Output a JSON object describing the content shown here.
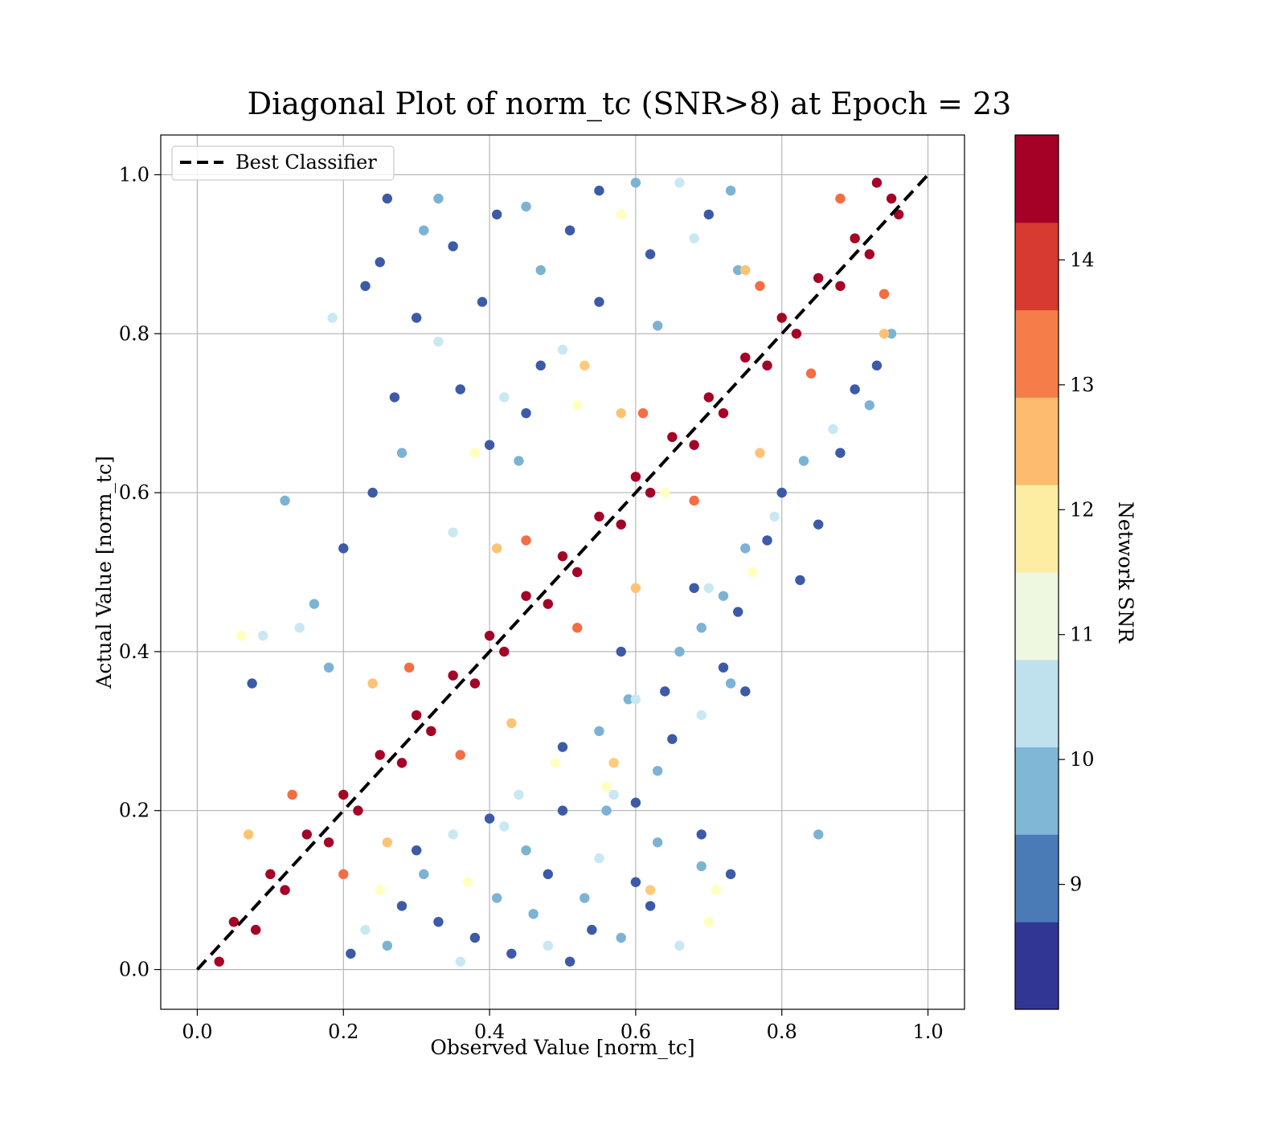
{
  "chart_data": {
    "type": "scatter",
    "title": "Diagonal Plot of norm_tc (SNR>8) at Epoch = 23",
    "xlabel": "Observed Value [norm_tc]",
    "ylabel": "Actual Value [norm_tc]",
    "xlim": [
      -0.05,
      1.05
    ],
    "ylim": [
      -0.05,
      1.05
    ],
    "xticks": [
      "0.0",
      "0.2",
      "0.4",
      "0.6",
      "0.8",
      "1.0"
    ],
    "yticks": [
      "0.0",
      "0.2",
      "0.4",
      "0.6",
      "0.8",
      "1.0"
    ],
    "grid": true,
    "legend": {
      "placement": "top-left",
      "entries": [
        {
          "label": "Best Classifier",
          "style": "dashed",
          "color": "#000000"
        }
      ]
    },
    "reference_line": {
      "x": [
        0,
        1
      ],
      "y": [
        0,
        1
      ]
    },
    "colorbar": {
      "label": "Network SNR",
      "range": [
        8,
        15
      ],
      "ticks": [
        "9",
        "10",
        "11",
        "12",
        "13",
        "14"
      ],
      "colors": [
        "#313695",
        "#4575b4",
        "#74add1",
        "#abd9e9",
        "#e0f3f8",
        "#ffffbf",
        "#fee090",
        "#fdae61",
        "#f46d43",
        "#d73027",
        "#a50026"
      ],
      "band_colors": [
        "#313695",
        "#4a7bb7",
        "#80b6d6",
        "#bfe1ed",
        "#eef7e0",
        "#fdeda3",
        "#fdbc6d",
        "#f57d4a",
        "#d73a2e",
        "#a50026"
      ]
    },
    "points": [
      [
        0.05,
        0.06,
        15.0
      ],
      [
        0.08,
        0.05,
        15.0
      ],
      [
        0.1,
        0.12,
        15.0
      ],
      [
        0.12,
        0.1,
        15.0
      ],
      [
        0.15,
        0.17,
        15.0
      ],
      [
        0.18,
        0.16,
        15.0
      ],
      [
        0.2,
        0.22,
        15.0
      ],
      [
        0.22,
        0.2,
        15.0
      ],
      [
        0.25,
        0.27,
        15.0
      ],
      [
        0.28,
        0.26,
        15.0
      ],
      [
        0.3,
        0.32,
        15.0
      ],
      [
        0.32,
        0.3,
        15.0
      ],
      [
        0.35,
        0.37,
        15.0
      ],
      [
        0.38,
        0.36,
        15.0
      ],
      [
        0.4,
        0.42,
        15.0
      ],
      [
        0.42,
        0.4,
        15.0
      ],
      [
        0.45,
        0.47,
        15.0
      ],
      [
        0.48,
        0.46,
        15.0
      ],
      [
        0.5,
        0.52,
        15.0
      ],
      [
        0.52,
        0.5,
        15.0
      ],
      [
        0.55,
        0.57,
        15.0
      ],
      [
        0.58,
        0.56,
        15.0
      ],
      [
        0.6,
        0.62,
        15.0
      ],
      [
        0.62,
        0.6,
        15.0
      ],
      [
        0.65,
        0.67,
        15.0
      ],
      [
        0.68,
        0.66,
        15.0
      ],
      [
        0.7,
        0.72,
        15.0
      ],
      [
        0.72,
        0.7,
        15.0
      ],
      [
        0.75,
        0.77,
        15.0
      ],
      [
        0.78,
        0.76,
        15.0
      ],
      [
        0.8,
        0.82,
        15.0
      ],
      [
        0.82,
        0.8,
        15.0
      ],
      [
        0.85,
        0.87,
        15.0
      ],
      [
        0.88,
        0.86,
        15.0
      ],
      [
        0.9,
        0.92,
        15.0
      ],
      [
        0.92,
        0.9,
        15.0
      ],
      [
        0.95,
        0.97,
        15.0
      ],
      [
        0.93,
        0.99,
        15.0
      ],
      [
        0.96,
        0.95,
        15.0
      ],
      [
        0.03,
        0.01,
        15.0
      ],
      [
        0.13,
        0.22,
        13.6
      ],
      [
        0.2,
        0.12,
        13.6
      ],
      [
        0.29,
        0.38,
        13.6
      ],
      [
        0.36,
        0.27,
        13.6
      ],
      [
        0.45,
        0.54,
        13.6
      ],
      [
        0.52,
        0.43,
        13.6
      ],
      [
        0.61,
        0.7,
        13.6
      ],
      [
        0.68,
        0.59,
        13.6
      ],
      [
        0.77,
        0.86,
        13.6
      ],
      [
        0.84,
        0.75,
        13.6
      ],
      [
        0.88,
        0.97,
        13.6
      ],
      [
        0.94,
        0.85,
        13.6
      ],
      [
        0.07,
        0.17,
        12.6
      ],
      [
        0.26,
        0.16,
        12.6
      ],
      [
        0.24,
        0.36,
        12.6
      ],
      [
        0.43,
        0.31,
        12.6
      ],
      [
        0.41,
        0.53,
        12.6
      ],
      [
        0.6,
        0.48,
        12.6
      ],
      [
        0.58,
        0.7,
        12.6
      ],
      [
        0.77,
        0.65,
        12.6
      ],
      [
        0.75,
        0.88,
        12.6
      ],
      [
        0.94,
        0.8,
        12.6
      ],
      [
        0.185,
        0.82,
        10.5
      ],
      [
        0.12,
        0.59,
        9.5
      ],
      [
        0.075,
        0.36,
        8.4
      ],
      [
        0.23,
        0.86,
        8.4
      ],
      [
        0.26,
        0.97,
        8.4
      ],
      [
        0.25,
        0.89,
        8.4
      ],
      [
        0.31,
        0.93,
        9.5
      ],
      [
        0.35,
        0.91,
        8.4
      ],
      [
        0.33,
        0.97,
        9.5
      ],
      [
        0.3,
        0.82,
        8.4
      ],
      [
        0.36,
        0.73,
        8.4
      ],
      [
        0.39,
        0.84,
        8.4
      ],
      [
        0.41,
        0.95,
        8.4
      ],
      [
        0.45,
        0.96,
        9.5
      ],
      [
        0.42,
        0.72,
        10.5
      ],
      [
        0.47,
        0.88,
        9.5
      ],
      [
        0.24,
        0.6,
        8.4
      ],
      [
        0.2,
        0.53,
        8.4
      ],
      [
        0.16,
        0.46,
        9.5
      ],
      [
        0.14,
        0.43,
        10.5
      ],
      [
        0.28,
        0.65,
        9.5
      ],
      [
        0.27,
        0.72,
        8.4
      ],
      [
        0.33,
        0.79,
        10.5
      ],
      [
        0.55,
        0.98,
        8.4
      ],
      [
        0.6,
        0.99,
        9.5
      ],
      [
        0.66,
        0.99,
        10.5
      ],
      [
        0.7,
        0.95,
        8.4
      ],
      [
        0.73,
        0.98,
        9.5
      ],
      [
        0.51,
        0.93,
        8.4
      ],
      [
        0.58,
        0.95,
        11.5
      ],
      [
        0.62,
        0.9,
        8.4
      ],
      [
        0.68,
        0.92,
        10.5
      ],
      [
        0.74,
        0.88,
        9.5
      ],
      [
        0.55,
        0.84,
        8.4
      ],
      [
        0.5,
        0.78,
        10.5
      ],
      [
        0.63,
        0.81,
        9.5
      ],
      [
        0.38,
        0.65,
        11.5
      ],
      [
        0.45,
        0.7,
        8.4
      ],
      [
        0.53,
        0.76,
        12.5
      ],
      [
        0.06,
        0.42,
        11.5
      ],
      [
        0.09,
        0.42,
        10.5
      ],
      [
        0.18,
        0.38,
        9.5
      ],
      [
        0.35,
        0.55,
        10.5
      ],
      [
        0.4,
        0.66,
        8.4
      ],
      [
        0.44,
        0.64,
        9.5
      ],
      [
        0.47,
        0.76,
        8.4
      ],
      [
        0.52,
        0.71,
        11.5
      ],
      [
        0.85,
        0.17,
        9.5
      ],
      [
        0.825,
        0.49,
        8.4
      ],
      [
        0.85,
        0.56,
        8.4
      ],
      [
        0.78,
        0.54,
        8.4
      ],
      [
        0.74,
        0.45,
        8.4
      ],
      [
        0.69,
        0.43,
        9.5
      ],
      [
        0.72,
        0.38,
        8.4
      ],
      [
        0.73,
        0.36,
        9.5
      ],
      [
        0.75,
        0.35,
        8.4
      ],
      [
        0.69,
        0.32,
        10.5
      ],
      [
        0.64,
        0.35,
        8.4
      ],
      [
        0.65,
        0.29,
        8.4
      ],
      [
        0.63,
        0.25,
        9.5
      ],
      [
        0.6,
        0.21,
        8.4
      ],
      [
        0.56,
        0.2,
        9.5
      ],
      [
        0.57,
        0.22,
        10.5
      ],
      [
        0.63,
        0.16,
        9.5
      ],
      [
        0.69,
        0.17,
        8.4
      ],
      [
        0.71,
        0.1,
        11.5
      ],
      [
        0.7,
        0.06,
        11.5
      ],
      [
        0.66,
        0.03,
        10.5
      ],
      [
        0.73,
        0.12,
        8.4
      ],
      [
        0.69,
        0.13,
        9.5
      ],
      [
        0.62,
        0.08,
        8.4
      ],
      [
        0.58,
        0.04,
        9.5
      ],
      [
        0.54,
        0.05,
        8.4
      ],
      [
        0.51,
        0.01,
        8.4
      ],
      [
        0.48,
        0.03,
        10.5
      ],
      [
        0.46,
        0.07,
        9.5
      ],
      [
        0.43,
        0.02,
        8.4
      ],
      [
        0.41,
        0.09,
        9.5
      ],
      [
        0.38,
        0.04,
        8.4
      ],
      [
        0.36,
        0.01,
        10.5
      ],
      [
        0.33,
        0.06,
        8.4
      ],
      [
        0.31,
        0.12,
        9.5
      ],
      [
        0.28,
        0.08,
        8.4
      ],
      [
        0.26,
        0.03,
        9.5
      ],
      [
        0.23,
        0.05,
        10.5
      ],
      [
        0.21,
        0.02,
        8.4
      ],
      [
        0.25,
        0.1,
        11.5
      ],
      [
        0.3,
        0.15,
        8.4
      ],
      [
        0.35,
        0.17,
        10.5
      ],
      [
        0.4,
        0.19,
        8.4
      ],
      [
        0.45,
        0.15,
        9.5
      ],
      [
        0.5,
        0.2,
        8.4
      ],
      [
        0.55,
        0.14,
        10.5
      ],
      [
        0.6,
        0.11,
        8.4
      ],
      [
        0.53,
        0.09,
        9.5
      ],
      [
        0.48,
        0.12,
        8.4
      ],
      [
        0.44,
        0.22,
        10.5
      ],
      [
        0.5,
        0.28,
        8.4
      ],
      [
        0.55,
        0.3,
        9.5
      ],
      [
        0.6,
        0.34,
        10.5
      ],
      [
        0.58,
        0.4,
        8.4
      ],
      [
        0.66,
        0.4,
        9.5
      ],
      [
        0.7,
        0.48,
        10.5
      ],
      [
        0.75,
        0.53,
        9.5
      ],
      [
        0.8,
        0.6,
        8.4
      ],
      [
        0.83,
        0.64,
        9.5
      ],
      [
        0.87,
        0.68,
        10.5
      ],
      [
        0.9,
        0.73,
        8.4
      ],
      [
        0.93,
        0.76,
        8.4
      ],
      [
        0.95,
        0.8,
        9.5
      ],
      [
        0.92,
        0.71,
        9.5
      ],
      [
        0.88,
        0.65,
        8.4
      ],
      [
        0.79,
        0.57,
        10.5
      ],
      [
        0.76,
        0.5,
        11.5
      ],
      [
        0.72,
        0.47,
        9.5
      ],
      [
        0.62,
        0.1,
        12.5
      ],
      [
        0.49,
        0.26,
        11.5
      ],
      [
        0.42,
        0.18,
        10.5
      ],
      [
        0.37,
        0.11,
        11.5
      ],
      [
        0.64,
        0.6,
        11.5
      ],
      [
        0.56,
        0.23,
        11.5
      ],
      [
        0.59,
        0.34,
        9.5
      ],
      [
        0.68,
        0.48,
        8.4
      ],
      [
        0.57,
        0.26,
        12.5
      ]
    ]
  }
}
